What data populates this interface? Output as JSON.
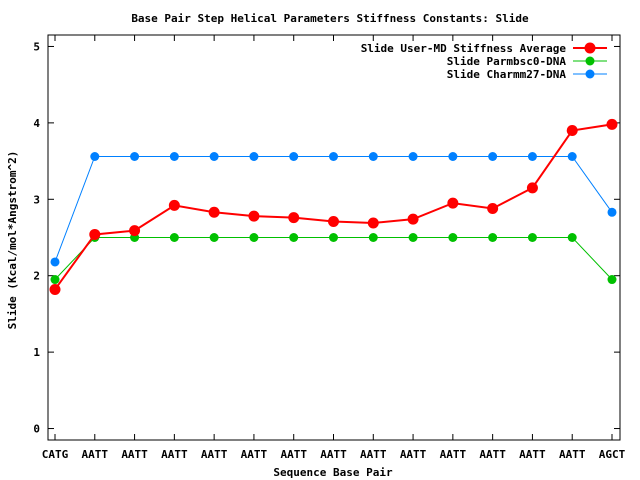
{
  "chart_data": {
    "type": "line",
    "title": "Base Pair Step Helical Parameters Stiffness Constants: Slide",
    "xlabel": "Sequence Base Pair",
    "ylabel": "Slide (Kcal/mol*Angstrom^2)",
    "categories": [
      "CATG",
      "AATT",
      "AATT",
      "AATT",
      "AATT",
      "AATT",
      "AATT",
      "AATT",
      "AATT",
      "AATT",
      "AATT",
      "AATT",
      "AATT",
      "AATT",
      "AGCT"
    ],
    "ylim": [
      -0.15,
      5.15
    ],
    "yticks": [
      "0",
      "1",
      "2",
      "3",
      "4",
      "5"
    ],
    "grid": false,
    "legend_position": "top-right",
    "series": [
      {
        "name": "Slide User-MD Stiffness Average",
        "color": "#ff0000",
        "values": [
          1.82,
          2.54,
          2.59,
          2.92,
          2.83,
          2.78,
          2.76,
          2.71,
          2.69,
          2.74,
          2.95,
          2.88,
          3.15,
          3.9,
          3.98
        ]
      },
      {
        "name": "Slide Parmbsc0-DNA",
        "color": "#00c000",
        "values": [
          1.95,
          2.5,
          2.5,
          2.5,
          2.5,
          2.5,
          2.5,
          2.5,
          2.5,
          2.5,
          2.5,
          2.5,
          2.5,
          2.5,
          1.95
        ]
      },
      {
        "name": "Slide Charmm27-DNA",
        "color": "#0080ff",
        "values": [
          2.18,
          3.56,
          3.56,
          3.56,
          3.56,
          3.56,
          3.56,
          3.56,
          3.56,
          3.56,
          3.56,
          3.56,
          3.56,
          3.56,
          2.83
        ]
      }
    ]
  }
}
